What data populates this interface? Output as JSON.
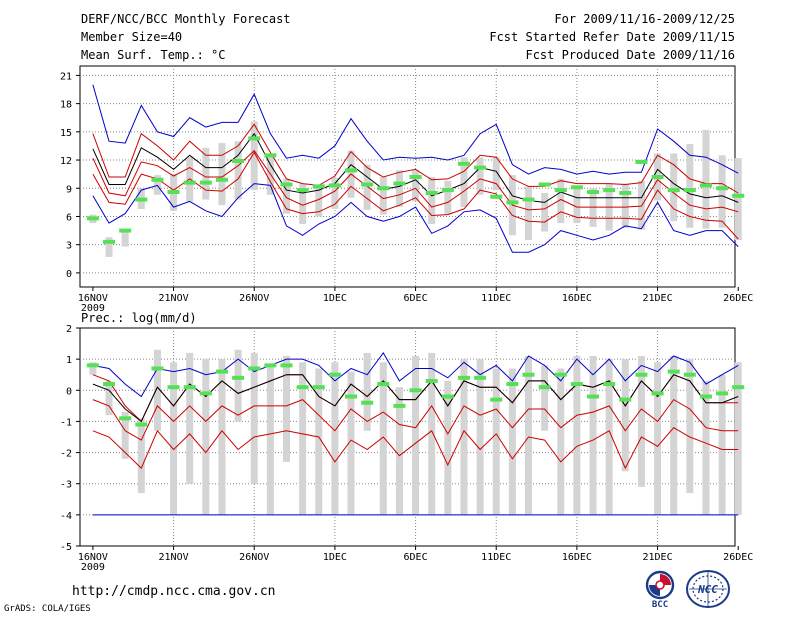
{
  "header": {
    "title": "DERF/NCC/BCC Monthly Forecast",
    "member_size": "Member Size=40",
    "variable": "Mean Surf. Temp.: °C",
    "forecast_period": "For 2009/11/16-2009/12/25",
    "started_date": "Fcst Started Refer Date 2009/11/15",
    "produced_date": "Fcst Produced Date 2009/11/16"
  },
  "footer": {
    "url": "http://cmdp.ncc.cma.gov.cn",
    "credit": "GrADS: COLA/IGES",
    "logo_bcc": "BCC",
    "logo_ncc": "NCC"
  },
  "colors": {
    "envelope": "#0000cc",
    "quantile": "#cc0000",
    "mean": "#000000",
    "box": "#d4d4d4",
    "marker": "#55e055",
    "grid": "#888888"
  },
  "chart_data": [
    {
      "type": "line",
      "title": "Mean Surf. Temp.: °C",
      "x_start_day": 0,
      "days": 40,
      "xticks": [
        "16NOV",
        "21NOV",
        "26NOV",
        "1DEC",
        "6DEC",
        "11DEC",
        "16DEC",
        "21DEC",
        "26DEC"
      ],
      "xtick_year": "2009",
      "ylim": [
        -1.5,
        22
      ],
      "yticks": [
        0,
        3,
        6,
        9,
        12,
        15,
        18,
        21
      ],
      "series": [
        {
          "name": "max",
          "values": [
            20,
            14,
            13.8,
            17.8,
            15,
            14.5,
            16.5,
            15.5,
            16,
            16,
            19,
            14.8,
            12.2,
            12.5,
            12.2,
            13.5,
            16.4,
            14,
            12,
            12.3,
            12.2,
            12.3,
            12,
            12.5,
            14.8,
            15.8,
            11.5,
            10.5,
            11.2,
            11,
            10.5,
            10.8,
            10.5,
            10.7,
            10.7,
            15.3,
            14,
            12.5,
            12.3,
            11.5,
            10.6
          ]
        },
        {
          "name": "upper",
          "values": [
            14.8,
            10.2,
            10.2,
            14.8,
            13.5,
            12,
            14,
            12.5,
            12.5,
            13.5,
            15.8,
            12.8,
            10,
            9.5,
            9.3,
            10.3,
            12.9,
            11.2,
            10.2,
            10.7,
            11,
            9.9,
            10,
            10.8,
            12.5,
            12.3,
            10,
            9.2,
            9.2,
            9.8,
            9.5,
            9.5,
            9.5,
            9.4,
            9.6,
            12.5,
            11.5,
            10,
            9.5,
            9.5,
            8.5
          ]
        },
        {
          "name": "mean",
          "values": [
            13.2,
            9.4,
            9.4,
            13.3,
            12.3,
            11,
            12.5,
            11.2,
            11.2,
            12.5,
            14.8,
            11.5,
            8.8,
            8.5,
            8.8,
            9.5,
            11.5,
            10.2,
            8.9,
            9.2,
            9.9,
            8.2,
            8.8,
            9.5,
            11.2,
            10.8,
            8.2,
            7.7,
            7.5,
            8.6,
            8,
            8,
            8,
            8,
            8,
            11,
            9.5,
            8.4,
            8,
            8.2,
            7.5
          ]
        },
        {
          "name": "lower",
          "values": [
            12.2,
            8.5,
            8.2,
            11.8,
            11.4,
            10.3,
            11.2,
            10.2,
            10.2,
            11.4,
            13,
            10.5,
            8,
            7.2,
            7.8,
            8.7,
            10.5,
            9.2,
            7.9,
            8.3,
            9,
            7,
            7.5,
            8.7,
            10,
            9.5,
            7.2,
            6.7,
            6.8,
            7.8,
            7,
            7,
            7,
            7,
            7.1,
            9.9,
            8.5,
            7.2,
            6.8,
            7,
            6.5
          ]
        },
        {
          "name": "low",
          "values": [
            10.5,
            7.5,
            7.3,
            10.5,
            10,
            8.8,
            10,
            8.8,
            8.7,
            10,
            12.8,
            9.7,
            6.8,
            6.3,
            6.5,
            7.3,
            9.2,
            7.9,
            6.6,
            7.2,
            8,
            6.1,
            6.2,
            6.8,
            8.8,
            8.4,
            6.1,
            5.5,
            5.4,
            6.5,
            5.9,
            5.8,
            5.8,
            5.8,
            5.7,
            8.8,
            6.8,
            6,
            5.6,
            5.5,
            3.6
          ]
        },
        {
          "name": "min",
          "values": [
            8.2,
            5.3,
            6.3,
            8.8,
            9.3,
            7,
            7.6,
            6.6,
            6,
            8,
            9.5,
            9.3,
            5,
            4,
            5.2,
            6,
            7.5,
            6,
            5.5,
            6,
            7,
            4.2,
            5,
            6.5,
            6.7,
            5.8,
            2.2,
            2.2,
            3,
            4.5,
            4,
            3.5,
            4,
            5,
            4.7,
            7.5,
            4.5,
            4,
            4.5,
            4.5,
            2.8
          ]
        }
      ],
      "boxes": {
        "low": [
          5.3,
          1.7,
          2.8,
          6.8,
          8.3,
          6.6,
          7.6,
          7.8,
          7.2,
          7.8,
          8.8,
          8.3,
          6.3,
          5.2,
          6,
          6.8,
          8,
          6.7,
          6.2,
          7,
          7.6,
          5.2,
          6.2,
          7,
          8.3,
          8.8,
          4,
          3.5,
          4.4,
          5.3,
          5.3,
          4.9,
          4.5,
          4.8,
          4.6,
          7.7,
          5.5,
          4.8,
          4.7,
          4.8,
          3.5
        ],
        "high": [
          6.2,
          3.8,
          4.7,
          9,
          10.4,
          10.5,
          12.3,
          13.3,
          13.8,
          14,
          16.1,
          12.5,
          10,
          9.5,
          9.4,
          10.1,
          13,
          11.5,
          10.2,
          10.9,
          10.9,
          10.2,
          9.8,
          12.3,
          12.3,
          12.3,
          10.4,
          9.2,
          8.5,
          10,
          9.3,
          9,
          9.5,
          9.5,
          9.8,
          12.7,
          12.7,
          13.7,
          15.2,
          12.5,
          12.2
        ]
      },
      "markers": [
        5.8,
        3.3,
        4.5,
        7.8,
        9.9,
        8.6,
        9.6,
        9.6,
        9.9,
        11.9,
        14.3,
        12.5,
        9.4,
        8.8,
        9.2,
        9.3,
        10.9,
        9.4,
        9,
        9.5,
        10.2,
        8.5,
        8.8,
        11.6,
        11.2,
        8.1,
        7.5,
        7.8,
        9.4,
        8.8,
        9.1,
        8.6,
        8.8,
        8.5,
        11.8,
        10.2,
        8.8,
        8.8,
        9.3,
        9,
        8.2
      ]
    },
    {
      "type": "line",
      "title": "Prec.: log(mm/d)",
      "x_start_day": 0,
      "days": 40,
      "xticks": [
        "16NOV",
        "21NOV",
        "26NOV",
        "1DEC",
        "6DEC",
        "11DEC",
        "16DEC",
        "21DEC",
        "26DEC"
      ],
      "xtick_year": "2009",
      "ylim": [
        -5,
        2
      ],
      "yticks": [
        -5,
        -4,
        -3,
        -2,
        -1,
        0,
        1,
        2
      ],
      "baseline": -4,
      "series": [
        {
          "name": "max",
          "values": [
            0.8,
            0.7,
            0.2,
            -0.2,
            0.7,
            0.6,
            0.7,
            0.5,
            0.6,
            1,
            0.6,
            0.8,
            1,
            1,
            0.8,
            0.3,
            0.7,
            0.5,
            1.2,
            0.3,
            0.7,
            0.7,
            0.4,
            0.9,
            0.5,
            0.8,
            0.3,
            1.1,
            0.8,
            0.3,
            1,
            0.5,
            1,
            0.3,
            0.8,
            0.6,
            1.1,
            0.9,
            0.2,
            0.5,
            0.8
          ]
        },
        {
          "name": "upper",
          "values": [
            0.5,
            0.3,
            -0.5,
            -1,
            0.1,
            -0.5,
            0.2,
            -0.2,
            0.3,
            -0.1,
            0.1,
            0.3,
            0.5,
            0.5,
            -0.2,
            -0.5,
            0.2,
            -0.2,
            0.3,
            -0.3,
            -0.3,
            0.3,
            -0.5,
            0.3,
            0.1,
            0.1,
            -0.4,
            0.3,
            0.3,
            -0.3,
            0.2,
            0.1,
            0.3,
            -0.5,
            0.3,
            -0.2,
            0.5,
            0.3,
            -0.4,
            -0.4,
            -0.4
          ]
        },
        {
          "name": "mean",
          "values": [
            0.2,
            0,
            -0.6,
            -1,
            0.1,
            -0.5,
            0.2,
            -0.2,
            0.3,
            -0.1,
            0.1,
            0.3,
            0.5,
            0.5,
            -0.2,
            -0.5,
            0.2,
            -0.2,
            0.3,
            -0.3,
            -0.3,
            0.3,
            -0.5,
            0.3,
            0.1,
            0.1,
            -0.4,
            0.3,
            0.3,
            -0.3,
            0.2,
            0.1,
            0.3,
            -0.5,
            0.3,
            -0.2,
            0.5,
            0.3,
            -0.4,
            -0.4,
            -0.2
          ]
        },
        {
          "name": "lower",
          "values": [
            -0.3,
            -0.5,
            -1.3,
            -1.6,
            -0.5,
            -1,
            -0.5,
            -1,
            -0.5,
            -0.8,
            -0.5,
            -0.5,
            -0.5,
            -0.3,
            -0.8,
            -1.3,
            -0.6,
            -1,
            -0.7,
            -1.1,
            -1.2,
            -0.5,
            -1.4,
            -0.5,
            -0.8,
            -0.6,
            -1.2,
            -0.6,
            -0.6,
            -1.2,
            -0.8,
            -0.7,
            -0.5,
            -1.3,
            -0.6,
            -1,
            -0.3,
            -0.6,
            -1.2,
            -1.3,
            -1.3
          ]
        },
        {
          "name": "low",
          "values": [
            -1.3,
            -1.5,
            -2,
            -2.5,
            -1.3,
            -1.9,
            -1.4,
            -2,
            -1.3,
            -1.9,
            -1.5,
            -1.4,
            -1.3,
            -1.4,
            -1.5,
            -2.3,
            -1.6,
            -1.9,
            -1.5,
            -2.1,
            -1.7,
            -1.3,
            -2.4,
            -1.3,
            -1.9,
            -1.4,
            -2.2,
            -1.5,
            -1.6,
            -2.3,
            -1.8,
            -1.6,
            -1.3,
            -2.5,
            -1.5,
            -1.8,
            -1.2,
            -1.5,
            -1.7,
            -1.9,
            -1.9
          ]
        },
        {
          "name": "min",
          "values": [
            -4,
            -4,
            -4,
            -4,
            -4,
            -4,
            -4,
            -4,
            -4,
            -4,
            -4,
            -4,
            -4,
            -4,
            -4,
            -4,
            -4,
            -4,
            -4,
            -4,
            -4,
            -4,
            -4,
            -4,
            -4,
            -4,
            -4,
            -4,
            -4,
            -4,
            -4,
            -4,
            -4,
            -4,
            -4,
            -4,
            -4,
            -4,
            -4,
            -4,
            -4
          ]
        }
      ],
      "boxes": {
        "low": [
          0.5,
          -0.8,
          -2.2,
          -3.3,
          -1.3,
          -4,
          -3,
          -4,
          -4,
          -1,
          -3,
          -4,
          -2.3,
          -4,
          -4,
          -4,
          -4,
          -1.3,
          -4,
          -4,
          -4,
          -4,
          -4,
          -4,
          -4,
          -4,
          -4,
          -4,
          -1.3,
          -4,
          -4,
          -4,
          -4,
          -2.6,
          -3.1,
          -4,
          -4,
          -3.3,
          -4,
          -4,
          -4
        ],
        "high": [
          0.9,
          0.3,
          -0.7,
          -0.9,
          1.3,
          0.9,
          1.2,
          1,
          1,
          1.3,
          1.2,
          0.8,
          1.1,
          0.9,
          0.7,
          0.9,
          0.6,
          1.2,
          0.9,
          0.1,
          1.1,
          1.2,
          0.3,
          1,
          1,
          0.7,
          0.7,
          1.1,
          0.8,
          0.7,
          1.1,
          1.1,
          1,
          1,
          1.1,
          0.9,
          1.1,
          1,
          0.3,
          0.5,
          0.9
        ]
      },
      "markers": [
        0.8,
        0.2,
        -0.9,
        -1.1,
        0.7,
        0.1,
        0.1,
        -0.1,
        0.6,
        0.4,
        0.7,
        0.8,
        0.8,
        0.1,
        0.1,
        0.5,
        -0.2,
        -0.4,
        0.2,
        -0.5,
        0,
        0.3,
        -0.2,
        0.4,
        0.4,
        -0.3,
        0.2,
        0.5,
        0.1,
        0.5,
        0.2,
        -0.2,
        0.2,
        -0.3,
        0.5,
        -0.1,
        0.6,
        0.5,
        -0.2,
        -0.1,
        0.1
      ]
    }
  ]
}
